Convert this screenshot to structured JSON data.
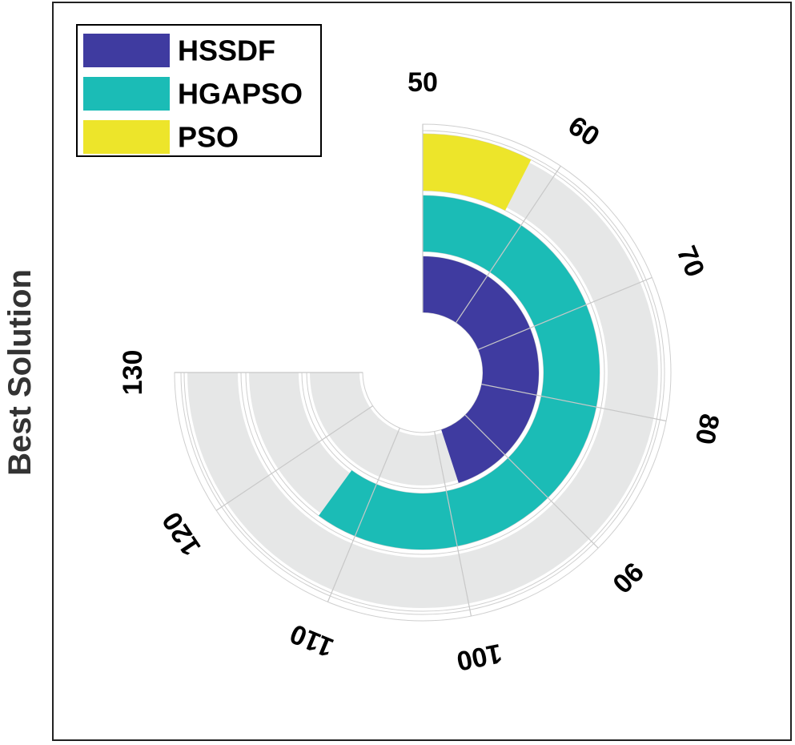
{
  "chart_data": {
    "type": "radial-bar",
    "ylabel": "Best Solution",
    "tick_labels": [
      "50",
      "60",
      "70",
      "80",
      "90",
      "100",
      "110",
      "120",
      "130"
    ],
    "series": [
      {
        "name": "HSSDF",
        "color": "#3f3ba0",
        "value": 98
      },
      {
        "name": "HGAPSO",
        "color": "#1bbcb6",
        "value": 114
      },
      {
        "name": "PSO",
        "color": "#ede52a",
        "value": 58
      }
    ],
    "scale": {
      "start": 50,
      "end": 130,
      "start_angle_deg": 0,
      "end_angle_deg": 270
    },
    "track_color": "#e6e7e7",
    "grid": true,
    "legend_position": "top-left"
  }
}
